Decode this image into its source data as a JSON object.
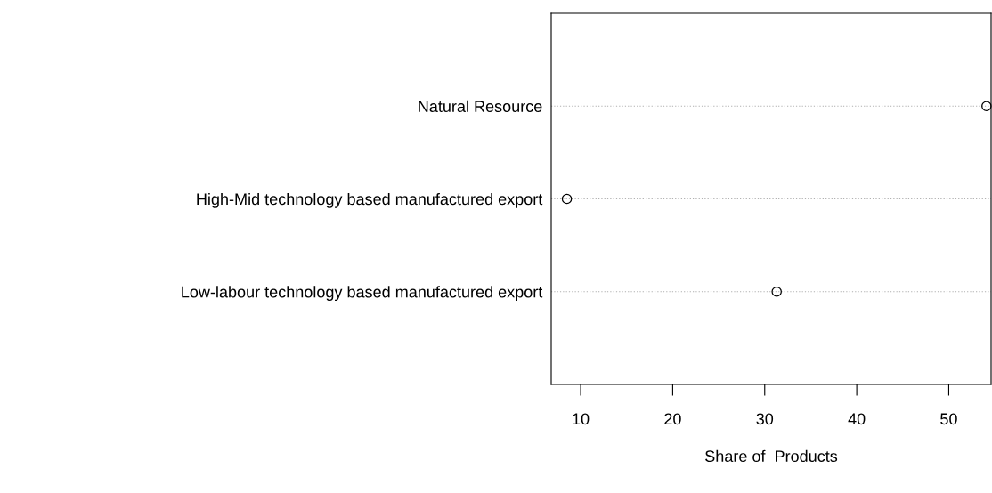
{
  "chart_data": {
    "type": "scatter",
    "orientation": "horizontal",
    "categories": [
      "Natural Resource",
      "High-Mid technology based manufactured export",
      "Low-labour technology based manufactured export"
    ],
    "values": [
      54.1,
      8.5,
      31.3
    ],
    "color": "#000000",
    "marker": "circle",
    "grid": "y",
    "xlim": [
      6.8,
      54.6
    ],
    "xticks": [
      10,
      20,
      30,
      40,
      50
    ],
    "xlabel": "Share of  Products"
  }
}
